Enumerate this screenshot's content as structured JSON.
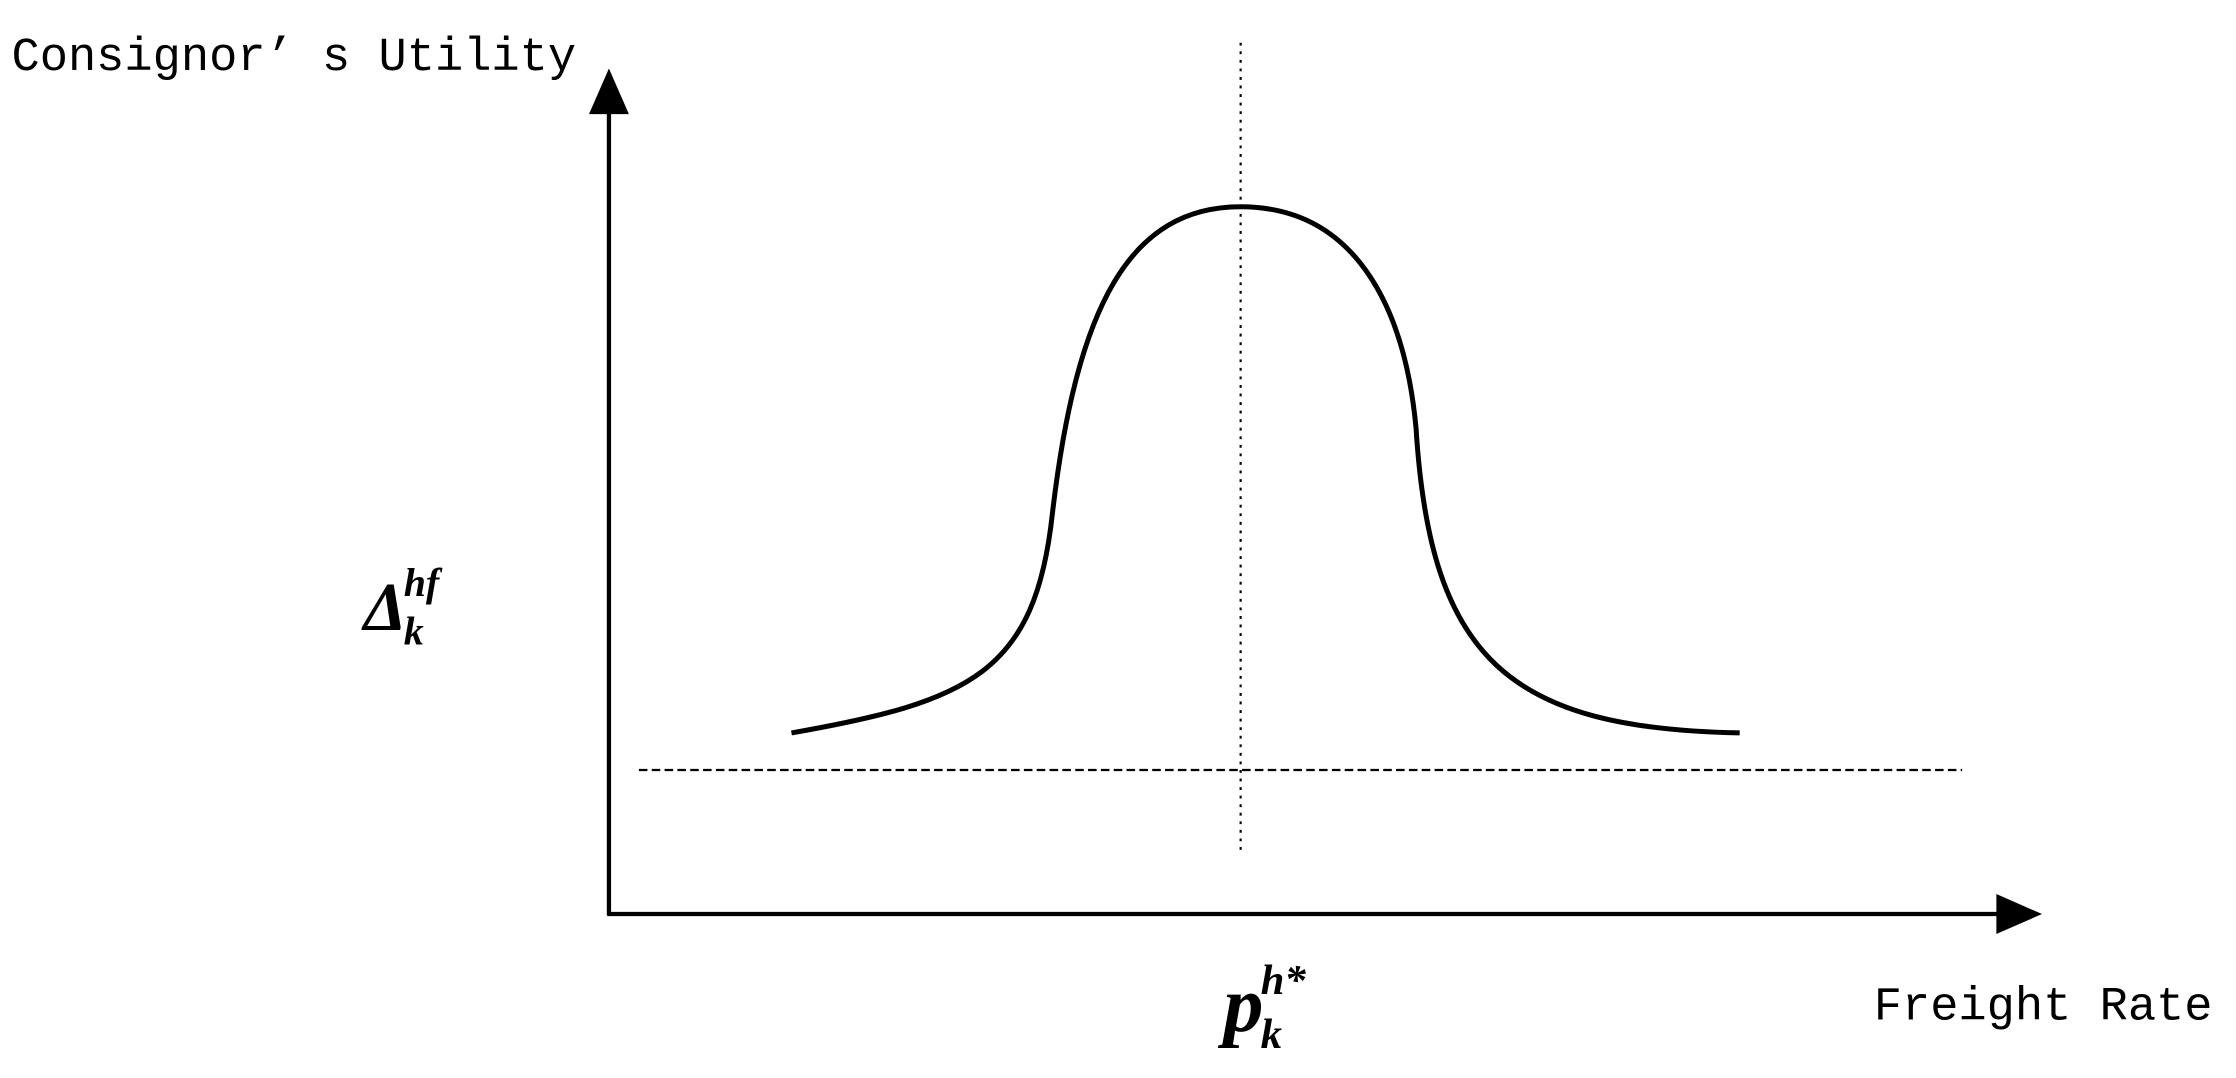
{
  "y_axis": {
    "label": "Consignor’ s Utility"
  },
  "x_axis": {
    "label": "Freight Rate"
  },
  "annotations": [
    {
      "base": "Δ",
      "subscript": "k",
      "superscript": "hf"
    },
    {
      "base": "p",
      "subscript": "k",
      "superscript": "h*"
    }
  ]
}
